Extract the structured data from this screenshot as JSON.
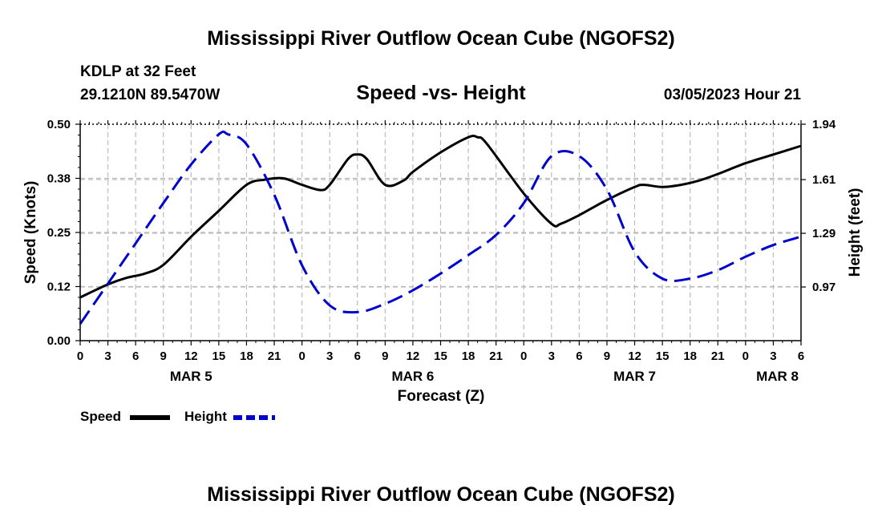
{
  "page": {
    "title_top": "Mississippi River Outflow Ocean Cube (NGOFS2)",
    "title_bottom": "Mississippi River Outflow Ocean Cube (NGOFS2)",
    "station": "KDLP at 32 Feet",
    "coords": "29.1210N  89.5470W",
    "datetime": "03/05/2023 Hour 21"
  },
  "colors": {
    "speed": "#000000",
    "height": "#0000cc",
    "grid": "#bbbbbb"
  },
  "chart_data": {
    "type": "line",
    "title": "Speed -vs- Height",
    "xlabel": "Forecast (Z)",
    "ylabel_left": "Speed (Knots)",
    "ylabel_right": "Height (feet)",
    "x_unit": "hours from MAR 5 00Z",
    "xlim": [
      -24,
      54
    ],
    "ylim_left": [
      0.0,
      0.5
    ],
    "ylim_right": [
      0.65,
      1.94
    ],
    "x_ticks": [
      {
        "x": -24,
        "label": "0"
      },
      {
        "x": -21,
        "label": "3"
      },
      {
        "x": -18,
        "label": "6"
      },
      {
        "x": -15,
        "label": "9"
      },
      {
        "x": -12,
        "label": "12"
      },
      {
        "x": -9,
        "label": "15"
      },
      {
        "x": -6,
        "label": "18"
      },
      {
        "x": -3,
        "label": "21"
      },
      {
        "x": 0,
        "label": "0"
      },
      {
        "x": 3,
        "label": "3"
      },
      {
        "x": 6,
        "label": "6"
      },
      {
        "x": 9,
        "label": "9"
      },
      {
        "x": 12,
        "label": "12"
      },
      {
        "x": 15,
        "label": "15"
      },
      {
        "x": 18,
        "label": "18"
      },
      {
        "x": 21,
        "label": "21"
      },
      {
        "x": 24,
        "label": "0"
      },
      {
        "x": 27,
        "label": "3"
      },
      {
        "x": 30,
        "label": "6"
      },
      {
        "x": 33,
        "label": "9"
      },
      {
        "x": 36,
        "label": "12"
      },
      {
        "x": 39,
        "label": "15"
      },
      {
        "x": 42,
        "label": "18"
      },
      {
        "x": 45,
        "label": "21"
      },
      {
        "x": 48,
        "label": "0"
      },
      {
        "x": 51,
        "label": "3"
      },
      {
        "x": 54,
        "label": "6"
      }
    ],
    "day_labels": [
      {
        "x": -12,
        "label": "MAR 5"
      },
      {
        "x": 12,
        "label": "MAR 6"
      },
      {
        "x": 36,
        "label": "MAR 7"
      },
      {
        "x": 54,
        "label": "MAR 8"
      }
    ],
    "y_ticks_left": [
      {
        "v": 0.0,
        "label": "0.00"
      },
      {
        "v": 0.125,
        "label": "0.12"
      },
      {
        "v": 0.25,
        "label": "0.25"
      },
      {
        "v": 0.375,
        "label": "0.38"
      },
      {
        "v": 0.5,
        "label": "0.50"
      }
    ],
    "y_ticks_right": [
      {
        "v": 0.97,
        "label": "0.97"
      },
      {
        "v": 1.29,
        "label": "1.29"
      },
      {
        "v": 1.61,
        "label": "1.61"
      },
      {
        "v": 1.94,
        "label": "1.94"
      }
    ],
    "series": [
      {
        "name": "Speed",
        "axis": "left",
        "style": "solid",
        "x": [
          -24,
          -21,
          -19,
          -17,
          -15,
          -12,
          -9,
          -6,
          -4,
          -2,
          0,
          2,
          3,
          5,
          6,
          7,
          9,
          11,
          12,
          15,
          18,
          19,
          20,
          24,
          27,
          28,
          30,
          33,
          36,
          37,
          39,
          41,
          43,
          45,
          48,
          51,
          54
        ],
        "y": [
          0.1,
          0.13,
          0.145,
          0.155,
          0.175,
          0.24,
          0.3,
          0.36,
          0.372,
          0.375,
          0.36,
          0.348,
          0.36,
          0.42,
          0.43,
          0.42,
          0.36,
          0.37,
          0.39,
          0.435,
          0.47,
          0.47,
          0.455,
          0.34,
          0.27,
          0.27,
          0.29,
          0.325,
          0.355,
          0.36,
          0.355,
          0.36,
          0.37,
          0.385,
          0.41,
          0.43,
          0.45
        ]
      },
      {
        "name": "Height",
        "axis": "right",
        "style": "dashed",
        "x": [
          -24,
          -21,
          -18,
          -15,
          -12,
          -9,
          -8,
          -6,
          -3,
          0,
          3,
          6,
          9,
          12,
          15,
          18,
          21,
          24,
          27,
          30,
          33,
          36,
          39,
          42,
          45,
          48,
          51,
          54
        ],
        "y": [
          0.75,
          0.99,
          1.23,
          1.47,
          1.7,
          1.88,
          1.88,
          1.82,
          1.52,
          1.1,
          0.86,
          0.82,
          0.87,
          0.95,
          1.05,
          1.16,
          1.28,
          1.47,
          1.75,
          1.75,
          1.55,
          1.18,
          1.02,
          1.02,
          1.07,
          1.15,
          1.22,
          1.27
        ]
      }
    ],
    "legend": [
      {
        "name": "Speed",
        "style": "solid"
      },
      {
        "name": "Height",
        "style": "dashed"
      }
    ],
    "legend_position": "bottom-left",
    "grid": true
  }
}
